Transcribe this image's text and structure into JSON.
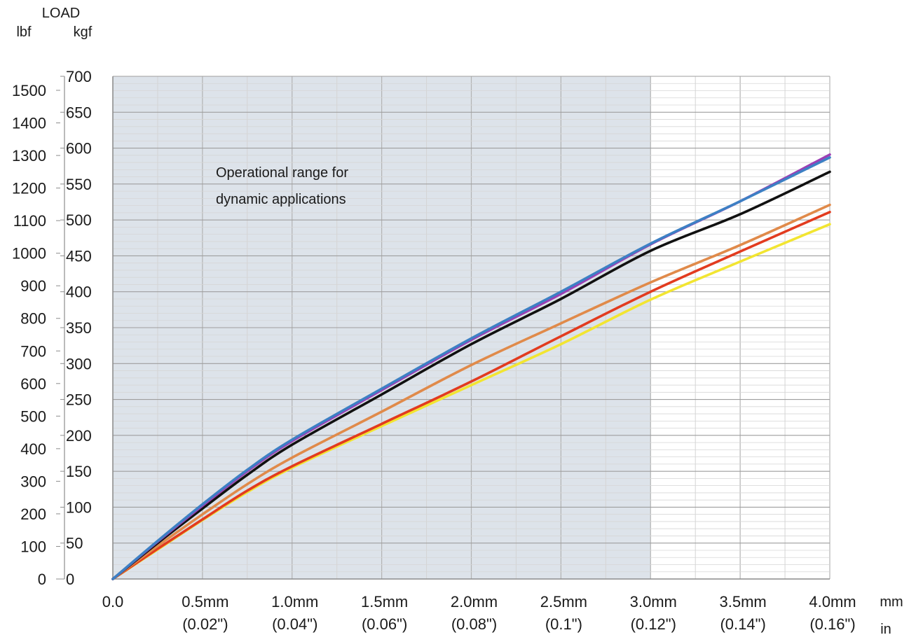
{
  "chart_data": {
    "type": "line",
    "title": "",
    "ylabel": "LOAD",
    "y_units_left": "lbf",
    "y_units_right": "kgf",
    "x_units_mm": "mm",
    "x_units_in": "in",
    "xlim": [
      0,
      4.0
    ],
    "ylim_kgf": [
      0,
      700
    ],
    "ylim_lbf": [
      0,
      1543
    ],
    "grid": true,
    "legend": "none",
    "kgf_ticks": [
      0,
      50,
      100,
      150,
      200,
      250,
      300,
      350,
      400,
      450,
      500,
      550,
      600,
      650,
      700
    ],
    "kgf_tick_labels": [
      "0",
      "50",
      "100",
      "150",
      "200",
      "250",
      "300",
      "350",
      "400",
      "450",
      "500",
      "550",
      "600",
      "650",
      "700"
    ],
    "lbf_ticks": [
      0,
      100,
      200,
      300,
      400,
      500,
      600,
      700,
      800,
      900,
      1000,
      1100,
      1200,
      1300,
      1400,
      1500
    ],
    "lbf_tick_labels": [
      "0",
      "100",
      "200",
      "300",
      "400",
      "500",
      "600",
      "700",
      "800",
      "900",
      "1000",
      "1100",
      "1200",
      "1300",
      "1400",
      "1500"
    ],
    "x_ticks": [
      0,
      0.5,
      1.0,
      1.5,
      2.0,
      2.5,
      3.0,
      3.5,
      4.0
    ],
    "x_tick_labels_mm": [
      "0.0",
      "0.5mm",
      "1.0mm",
      "1.5mm",
      "2.0mm",
      "2.5mm",
      "3.0mm",
      "3.5mm",
      "4.0mm"
    ],
    "x_tick_labels_in": [
      "",
      "(0.02\")",
      "(0.04\")",
      "(0.06\")",
      "(0.08\")",
      "(0.1\")",
      "(0.12\")",
      "(0.14\")",
      "(0.16\")"
    ],
    "shaded_region": {
      "x_from": 0,
      "x_to": 3.0,
      "color": "#dde3ea",
      "label_line1": "Operational range for",
      "label_line2": "dynamic applications"
    },
    "x": [
      0,
      0.25,
      0.5,
      0.75,
      1.0,
      1.5,
      2.0,
      2.5,
      3.0,
      3.5,
      4.0
    ],
    "series": [
      {
        "color": "#9b3fb5",
        "values": [
          0,
          52,
          102,
          150,
          192,
          263,
          333,
          397,
          466,
          526,
          591
        ]
      },
      {
        "color": "#3d80c4",
        "values": [
          0,
          53,
          104,
          152,
          194,
          265,
          335,
          400,
          467,
          526,
          587
        ]
      },
      {
        "color": "#111111",
        "values": [
          0,
          50,
          98,
          145,
          187,
          257,
          327,
          390,
          457,
          508,
          567
        ]
      },
      {
        "color": "#e08a4a",
        "values": [
          0,
          46,
          90,
          132,
          169,
          233,
          298,
          356,
          413,
          465,
          521
        ]
      },
      {
        "color": "#e23b1f",
        "values": [
          0,
          42,
          83,
          123,
          157,
          216,
          275,
          338,
          400,
          456,
          511
        ]
      },
      {
        "color": "#f2e531",
        "values": [
          0,
          41,
          82,
          121,
          155,
          213,
          270,
          327,
          389,
          442,
          494
        ]
      }
    ]
  }
}
